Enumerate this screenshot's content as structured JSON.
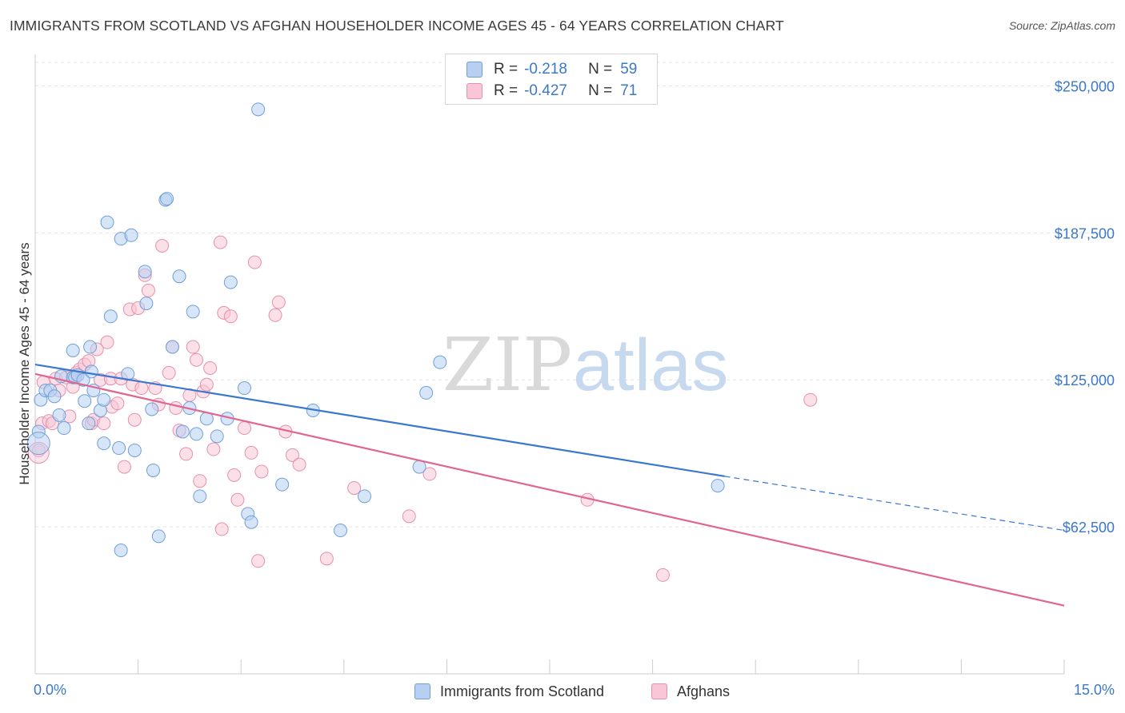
{
  "title": "IMMIGRANTS FROM SCOTLAND VS AFGHAN HOUSEHOLDER INCOME AGES 45 - 64 YEARS CORRELATION CHART",
  "source": "Source: ZipAtlas.com",
  "watermark": {
    "zip": "ZIP",
    "atlas": "atlas"
  },
  "legend": {
    "rows": [
      {
        "r_label": "R =",
        "r_value": "-0.218",
        "n_label": "N =",
        "n_value": "59"
      },
      {
        "r_label": "R =",
        "r_value": "-0.427",
        "n_label": "N =",
        "n_value": "71"
      }
    ]
  },
  "colors": {
    "scotland_fill": "#b7d0f2",
    "scotland_stroke": "#6f9fd8",
    "scotland_line": "#3a78d0",
    "afghan_fill": "#f8c6d6",
    "afghan_stroke": "#e590ae",
    "afghan_line": "#e06690",
    "tick_text": "#3b78c8",
    "grid": "#e4e4e4"
  },
  "chart_data": {
    "type": "scatter",
    "title": "IMMIGRANTS FROM SCOTLAND VS AFGHAN HOUSEHOLDER INCOME AGES 45 - 64 YEARS CORRELATION CHART",
    "xlabel": "",
    "ylabel": "Householder Income Ages 45 - 64 years",
    "xlim": [
      0,
      15
    ],
    "ylim": [
      0,
      260000
    ],
    "x_tick_labels": [
      "0.0%",
      "15.0%"
    ],
    "y_ticks": [
      62500,
      125000,
      187500,
      250000
    ],
    "y_tick_labels": [
      "$62,500",
      "$125,000",
      "$187,500",
      "$250,000"
    ],
    "grid": true,
    "legend_position": "top-center",
    "series": [
      {
        "name": "Immigrants from Scotland",
        "R": -0.218,
        "N": 59,
        "trend": {
          "x0": 0.0,
          "y0": 131500,
          "x1": 10.05,
          "y1": 84000,
          "dash_to_x": 15.0,
          "dash_to_y": 61000
        },
        "points": [
          [
            0.08,
            116500
          ],
          [
            0.05,
            103000
          ],
          [
            0.15,
            120500
          ],
          [
            0.22,
            120500
          ],
          [
            0.28,
            118000
          ],
          [
            0.35,
            110000
          ],
          [
            0.38,
            126500
          ],
          [
            0.42,
            104500
          ],
          [
            0.55,
            126000
          ],
          [
            0.55,
            137500
          ],
          [
            0.58,
            126000
          ],
          [
            0.62,
            127000
          ],
          [
            0.7,
            125000
          ],
          [
            0.72,
            116000
          ],
          [
            0.78,
            106500
          ],
          [
            0.8,
            139000
          ],
          [
            0.82,
            128500
          ],
          [
            0.85,
            120500
          ],
          [
            0.95,
            112000
          ],
          [
            1.0,
            98000
          ],
          [
            1.05,
            192000
          ],
          [
            1.1,
            152000
          ],
          [
            1.22,
            96000
          ],
          [
            1.25,
            52500
          ],
          [
            1.25,
            185000
          ],
          [
            1.35,
            127500
          ],
          [
            1.4,
            186500
          ],
          [
            1.45,
            95000
          ],
          [
            1.6,
            171000
          ],
          [
            1.62,
            157500
          ],
          [
            1.7,
            112500
          ],
          [
            1.72,
            86500
          ],
          [
            1.8,
            58500
          ],
          [
            1.9,
            201500
          ],
          [
            1.92,
            202000
          ],
          [
            2.0,
            139000
          ],
          [
            2.1,
            169000
          ],
          [
            2.15,
            103000
          ],
          [
            2.25,
            113000
          ],
          [
            2.3,
            154000
          ],
          [
            2.35,
            102000
          ],
          [
            2.4,
            75500
          ],
          [
            2.5,
            108500
          ],
          [
            2.65,
            101000
          ],
          [
            2.8,
            108500
          ],
          [
            2.85,
            166500
          ],
          [
            3.05,
            121500
          ],
          [
            3.1,
            68000
          ],
          [
            3.15,
            64500
          ],
          [
            3.25,
            240000
          ],
          [
            3.6,
            80500
          ],
          [
            4.05,
            112000
          ],
          [
            4.45,
            61000
          ],
          [
            4.8,
            75500
          ],
          [
            5.6,
            88000
          ],
          [
            5.7,
            119500
          ],
          [
            5.9,
            132500
          ],
          [
            9.95,
            80000
          ],
          [
            1.0,
            116500
          ]
        ]
      },
      {
        "name": "Afghans",
        "R": -0.427,
        "N": 71,
        "trend": {
          "x0": 0.0,
          "y0": 127500,
          "x1": 15.0,
          "y1": 29000
        },
        "points": [
          [
            0.05,
            95000
          ],
          [
            0.1,
            106500
          ],
          [
            0.2,
            107500
          ],
          [
            0.25,
            106500
          ],
          [
            0.3,
            125500
          ],
          [
            0.35,
            120500
          ],
          [
            0.45,
            126000
          ],
          [
            0.5,
            109500
          ],
          [
            0.55,
            122000
          ],
          [
            0.6,
            128000
          ],
          [
            0.65,
            129500
          ],
          [
            0.72,
            131500
          ],
          [
            0.78,
            133000
          ],
          [
            0.82,
            106500
          ],
          [
            0.85,
            108000
          ],
          [
            0.9,
            138000
          ],
          [
            0.95,
            125000
          ],
          [
            1.0,
            106500
          ],
          [
            1.05,
            141000
          ],
          [
            1.1,
            125500
          ],
          [
            1.12,
            113500
          ],
          [
            1.2,
            115000
          ],
          [
            1.25,
            125500
          ],
          [
            1.3,
            88000
          ],
          [
            1.38,
            155000
          ],
          [
            1.42,
            123000
          ],
          [
            1.45,
            108000
          ],
          [
            1.5,
            155500
          ],
          [
            1.55,
            121500
          ],
          [
            1.6,
            169500
          ],
          [
            1.65,
            163000
          ],
          [
            1.75,
            121500
          ],
          [
            1.8,
            114500
          ],
          [
            1.85,
            182000
          ],
          [
            1.95,
            128000
          ],
          [
            2.0,
            139000
          ],
          [
            2.05,
            113000
          ],
          [
            2.1,
            103500
          ],
          [
            2.2,
            93500
          ],
          [
            2.25,
            118500
          ],
          [
            2.3,
            139000
          ],
          [
            2.35,
            133500
          ],
          [
            2.4,
            82000
          ],
          [
            2.45,
            120000
          ],
          [
            2.5,
            123000
          ],
          [
            2.55,
            130000
          ],
          [
            2.6,
            95500
          ],
          [
            2.7,
            183500
          ],
          [
            2.72,
            61500
          ],
          [
            2.75,
            153500
          ],
          [
            2.85,
            152000
          ],
          [
            2.9,
            84500
          ],
          [
            2.95,
            74000
          ],
          [
            3.05,
            104500
          ],
          [
            3.15,
            94000
          ],
          [
            3.2,
            175000
          ],
          [
            3.25,
            48000
          ],
          [
            3.3,
            86000
          ],
          [
            3.5,
            152500
          ],
          [
            3.55,
            158000
          ],
          [
            3.65,
            103000
          ],
          [
            3.75,
            93000
          ],
          [
            3.85,
            89000
          ],
          [
            4.25,
            49000
          ],
          [
            4.65,
            79000
          ],
          [
            5.45,
            67000
          ],
          [
            5.75,
            85000
          ],
          [
            8.05,
            74000
          ],
          [
            9.15,
            42000
          ],
          [
            11.3,
            116500
          ],
          [
            0.12,
            124000
          ]
        ]
      }
    ]
  },
  "bottom_legend": {
    "series_1": "Immigrants from Scotland",
    "series_2": "Afghans"
  }
}
